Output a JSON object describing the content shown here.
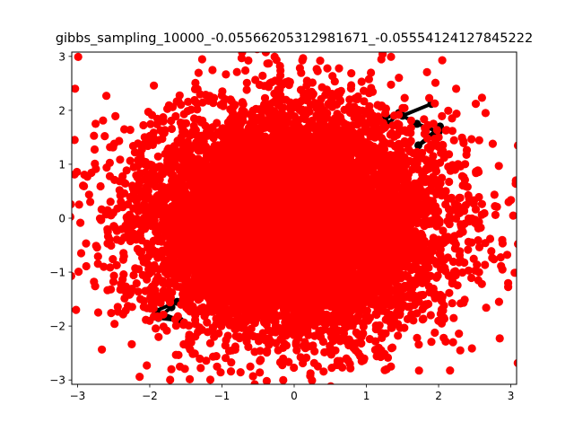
{
  "chart_data": {
    "type": "scatter",
    "title": "gibbs_sampling_10000_-0.05566205312981671_-0.05554124127845222",
    "xlabel": "",
    "ylabel": "",
    "xlim": [
      -3.08,
      3.08
    ],
    "ylim": [
      -3.08,
      3.08
    ],
    "grid": false,
    "legend": null,
    "x_ticks": [
      "−3",
      "−2",
      "−1",
      "0",
      "1",
      "2",
      "3"
    ],
    "y_ticks": [
      "−3",
      "−2",
      "−1",
      "0",
      "1",
      "2",
      "3"
    ],
    "series": [
      {
        "marker_color": "#ff0000",
        "n_points": 10000,
        "distribution": "approx. bivariate standard normal, mean near (-0.056, -0.056)",
        "visible_outliers": [
          [
            -2.99,
            2.99
          ],
          [
            3.07,
            0.7
          ],
          [
            -3.04,
            1.45
          ],
          [
            -3.02,
            -1.7
          ],
          [
            2.95,
            -0.68
          ],
          [
            2.97,
            0.3
          ],
          [
            2.75,
            1.38
          ],
          [
            2.65,
            1.95
          ],
          [
            -2.6,
            2.27
          ],
          [
            -2.75,
            1.75
          ],
          [
            -2.14,
            -2.94
          ],
          [
            -2.04,
            -2.73
          ],
          [
            2.3,
            -2.45
          ],
          [
            1.28,
            -2.8
          ],
          [
            1.34,
            -2.75
          ],
          [
            -2.95,
            -0.65
          ],
          [
            2.55,
            -1.15
          ],
          [
            2.2,
            -2.3
          ],
          [
            -1.7,
            -2.8
          ]
        ]
      },
      {
        "marker_color": "#000000",
        "note": "dark path segments partially visible behind red markers",
        "visible_segments": [
          [
            [
              1.9,
              2.12
            ],
            [
              1.5,
              1.9
            ],
            [
              1.7,
              1.75
            ],
            [
              2.0,
              1.6
            ],
            [
              1.72,
              1.35
            ],
            [
              1.85,
              1.5
            ],
            [
              2.02,
              1.7
            ]
          ],
          [
            [
              1.25,
              1.85
            ],
            [
              1.45,
              1.95
            ],
            [
              1.3,
              1.75
            ]
          ],
          [
            [
              -1.95,
              -1.42
            ],
            [
              -1.62,
              -1.55
            ],
            [
              -1.92,
              -1.72
            ],
            [
              -1.58,
              -1.9
            ],
            [
              -1.88,
              -1.85
            ],
            [
              -1.7,
              -1.65
            ]
          ],
          [
            [
              -1.15,
              -1.6
            ],
            [
              -1.25,
              -1.75
            ]
          ]
        ]
      }
    ]
  }
}
